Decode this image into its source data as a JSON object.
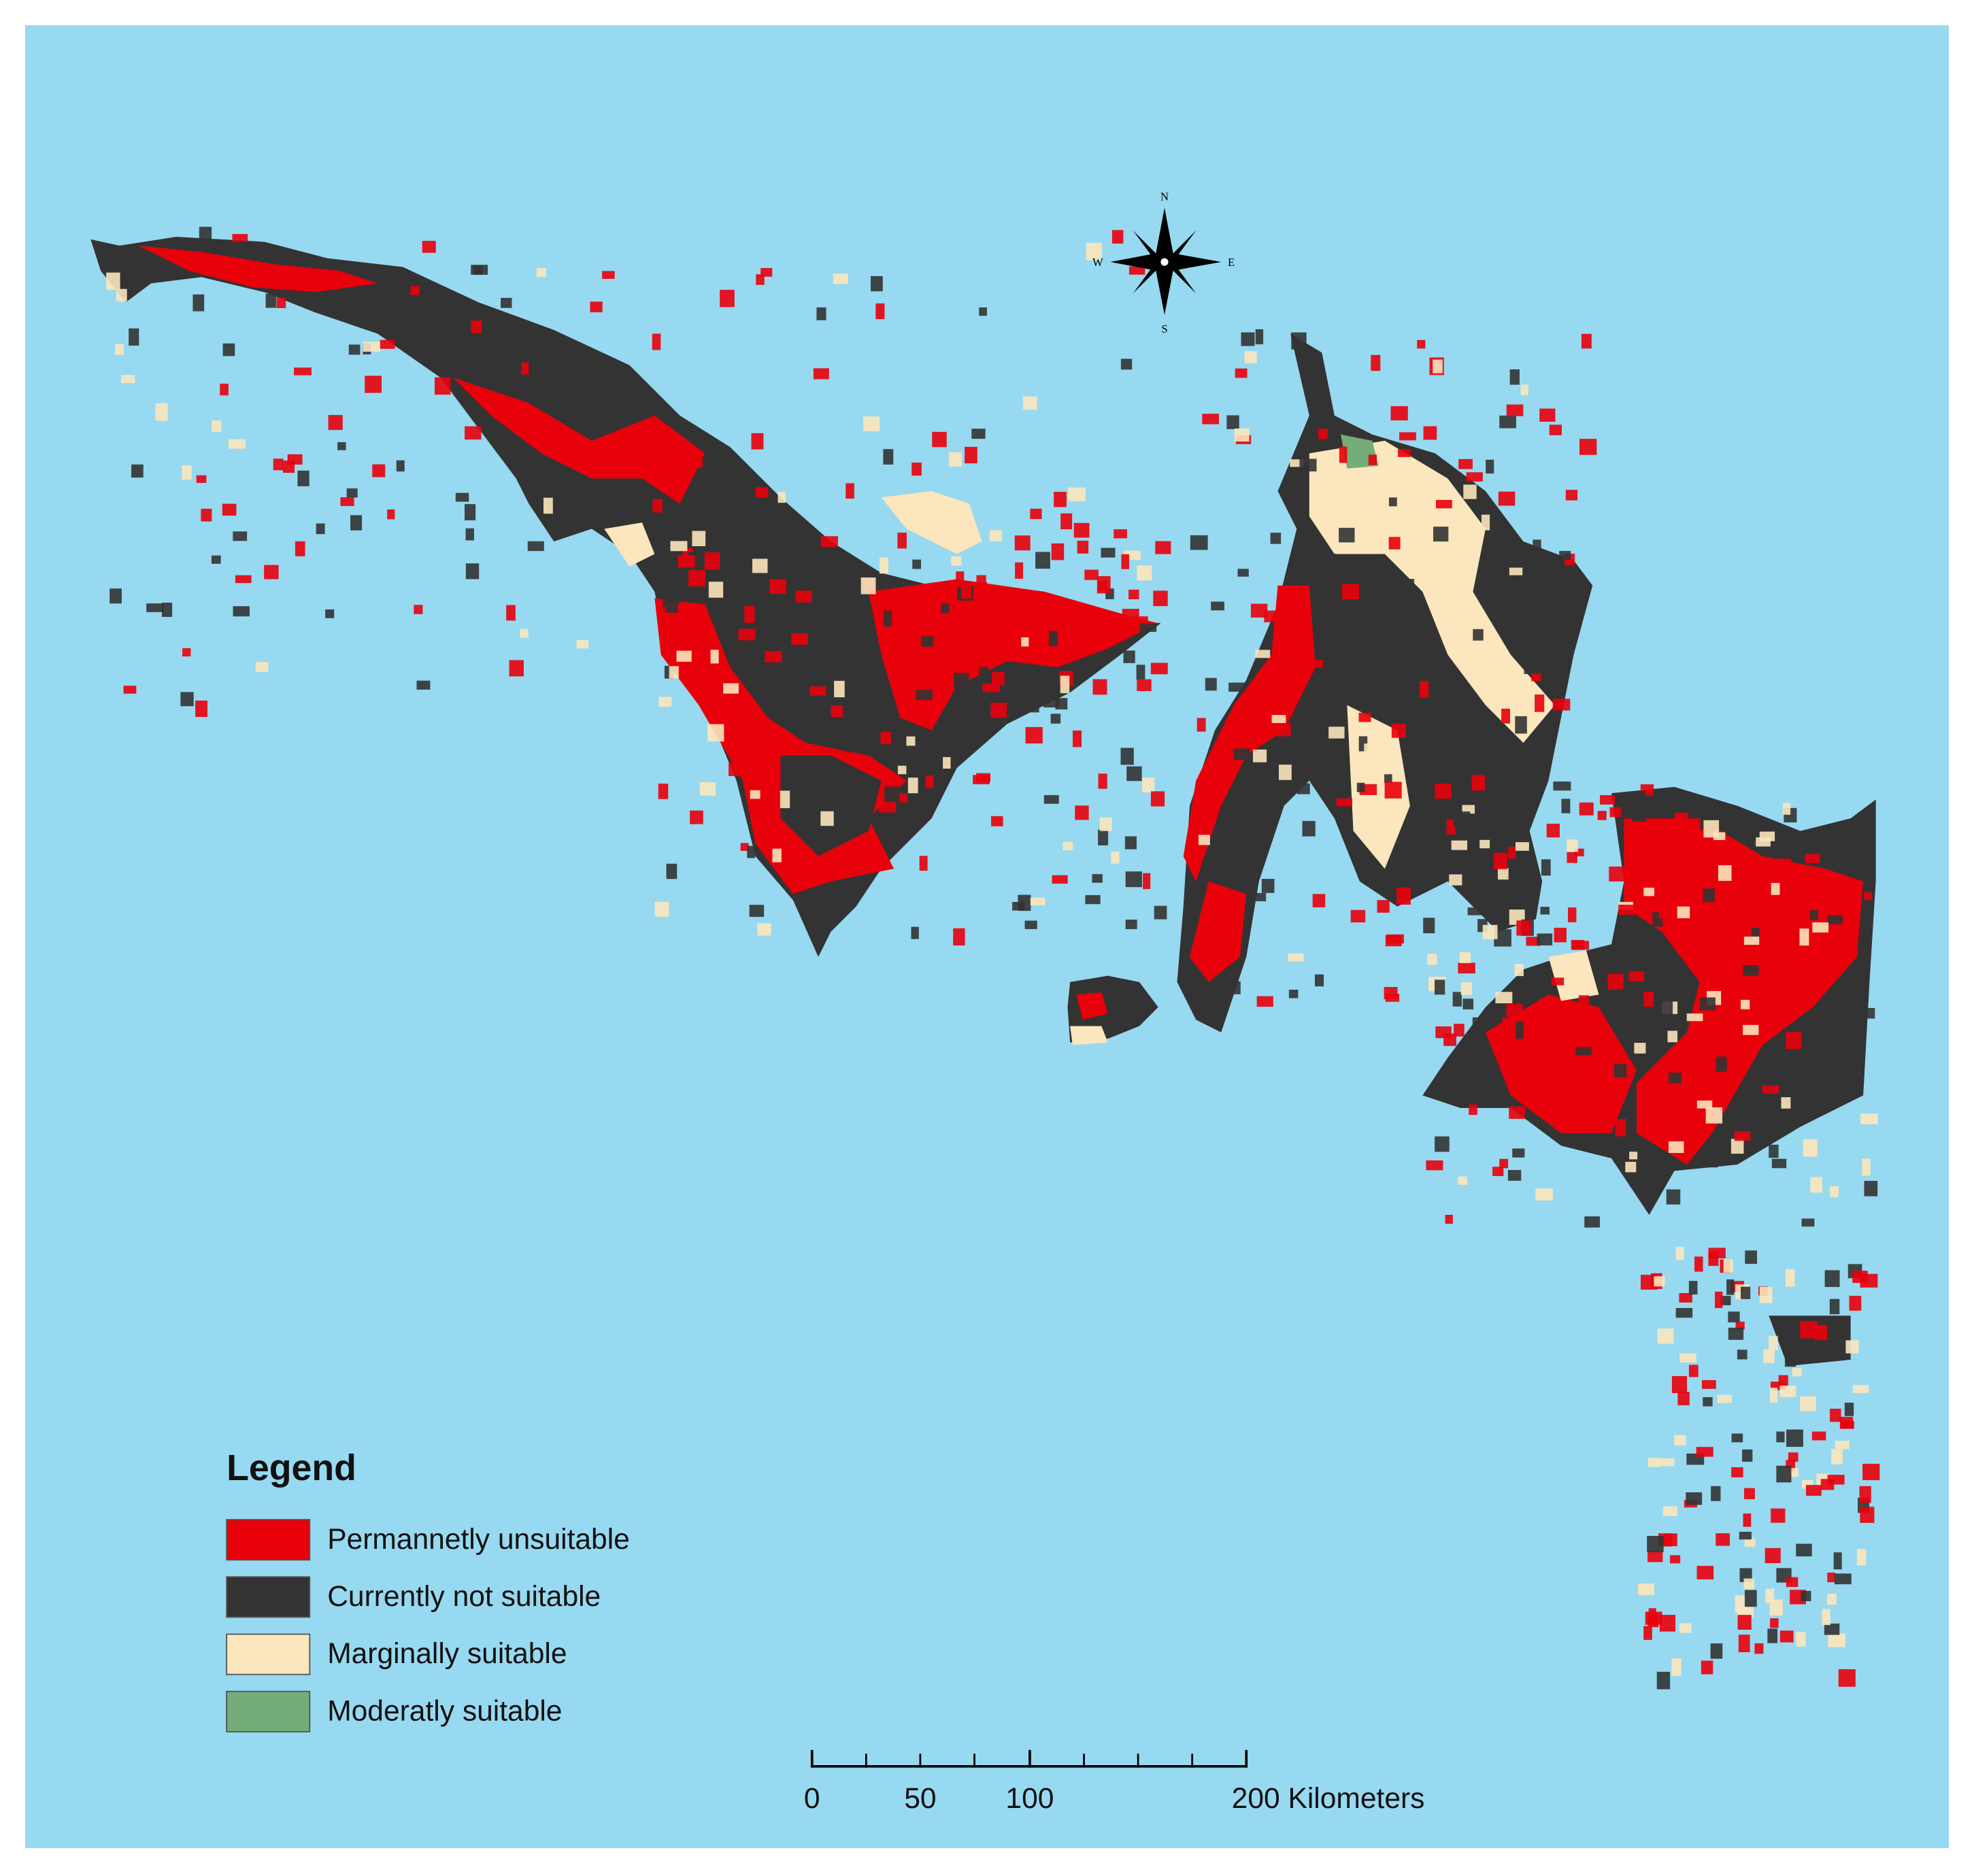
{
  "compass": {
    "north": "N",
    "east": "E",
    "south": "S",
    "west": "W"
  },
  "legend": {
    "title": "Legend",
    "items": [
      {
        "label": "Permannetly unsuitable",
        "color": "#e8000b"
      },
      {
        "label": "Currently not suitable",
        "color": "#333333"
      },
      {
        "label": "Marginally suitable",
        "color": "#fbe6bd"
      },
      {
        "label": "Moderatly suitable",
        "color": "#74ad79"
      }
    ]
  },
  "scale_bar": {
    "labels": [
      "0",
      "50",
      "100",
      "200 Kilometers"
    ]
  }
}
